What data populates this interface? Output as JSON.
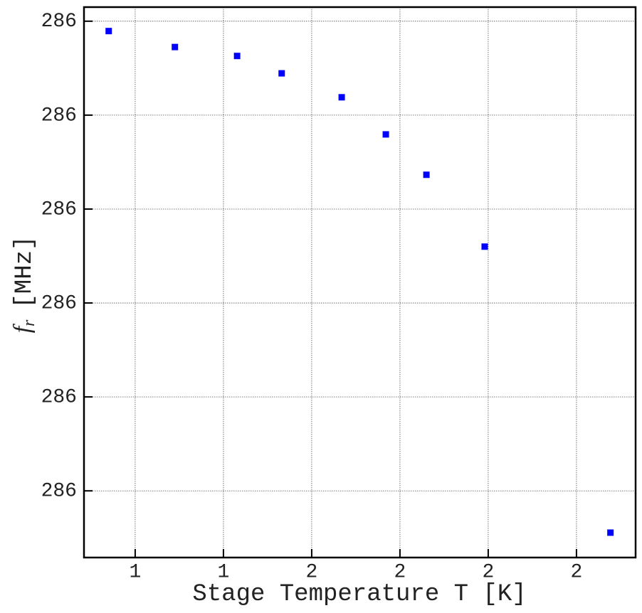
{
  "chart_data": {
    "type": "scatter",
    "xlabel": "Stage Temperature T [K]",
    "ylabel": {
      "symbol": "f",
      "subscript": "r",
      "unit": "[MHz]"
    },
    "x": [
      1.14,
      1.29,
      1.431,
      1.532,
      1.668,
      1.768,
      1.86,
      1.992,
      2.277
    ],
    "series": [
      {
        "color": "#0000ff",
        "values": [
          285.9979,
          285.9945,
          285.9926,
          285.9889,
          285.9838,
          285.9759,
          285.9673,
          285.952,
          285.8911
        ]
      }
    ],
    "xlim": [
      1.084,
      2.334
    ],
    "ylim": [
      285.8858,
      286.003
    ],
    "xticks": [
      {
        "value": 1.2,
        "label": "1"
      },
      {
        "value": 1.4,
        "label": "1"
      },
      {
        "value": 1.6,
        "label": "2"
      },
      {
        "value": 1.8,
        "label": "2"
      },
      {
        "value": 2.0,
        "label": "2"
      },
      {
        "value": 2.2,
        "label": "2"
      }
    ],
    "yticks": [
      {
        "value": 285.9,
        "label": "286"
      },
      {
        "value": 285.92,
        "label": "286"
      },
      {
        "value": 285.94,
        "label": "286"
      },
      {
        "value": 285.96,
        "label": "286"
      },
      {
        "value": 285.98,
        "label": "286"
      },
      {
        "value": 286.0,
        "label": "286"
      }
    ],
    "grid": true
  }
}
